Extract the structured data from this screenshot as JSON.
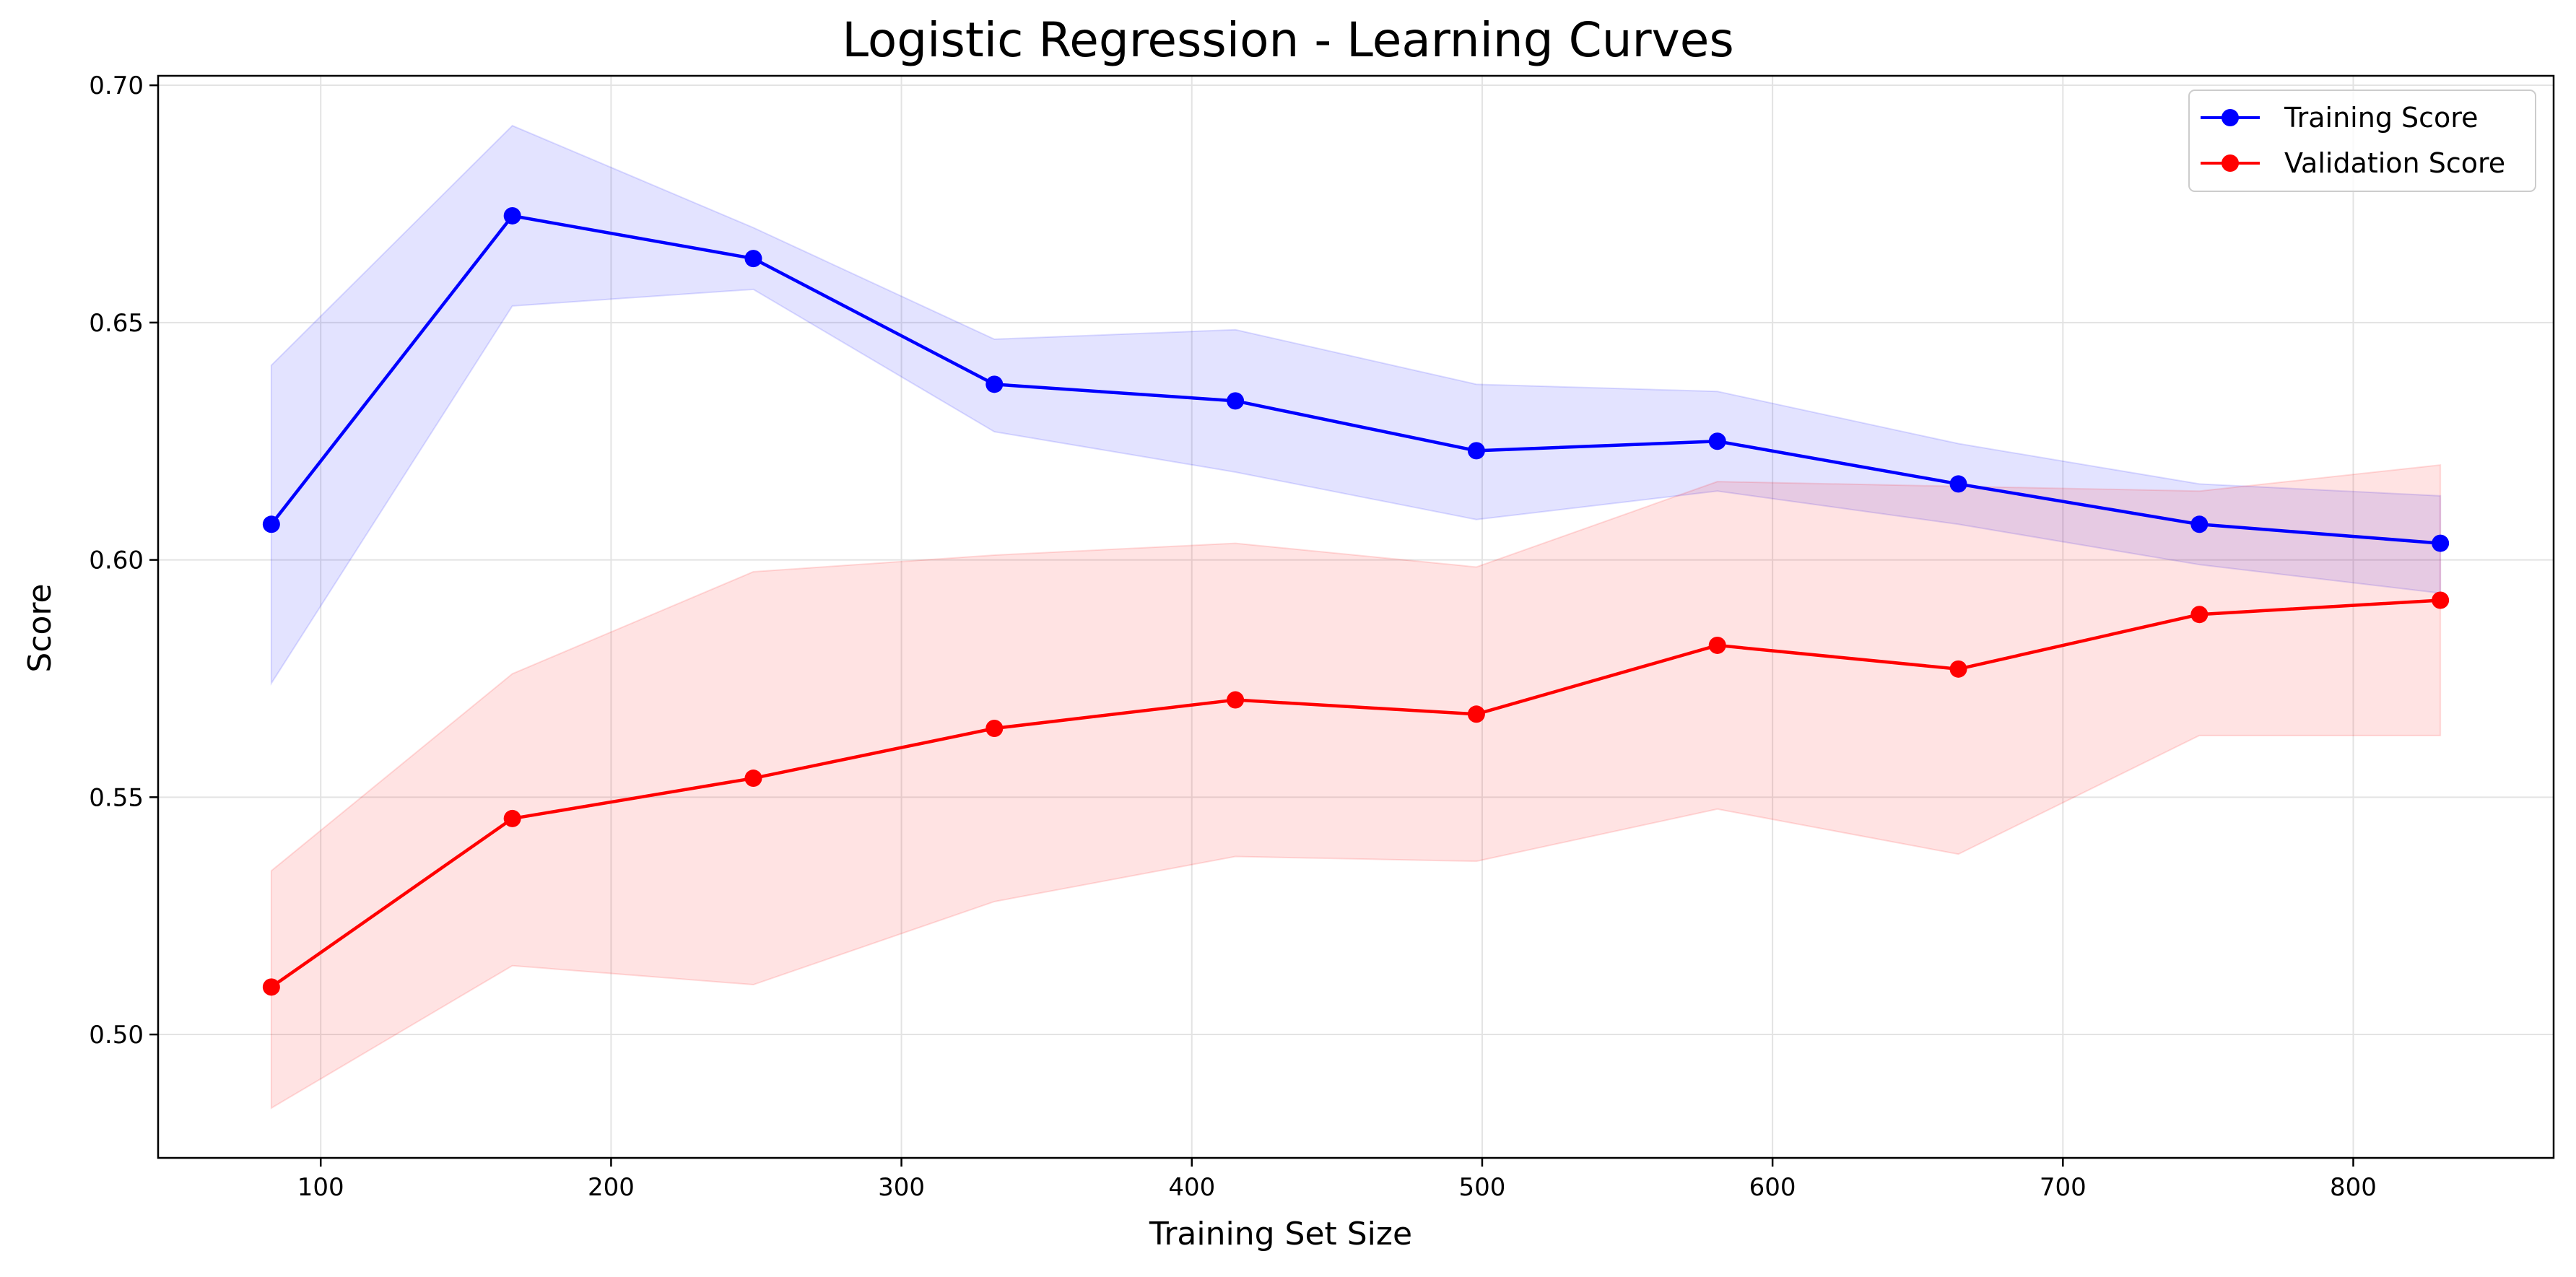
{
  "chart_data": {
    "type": "line",
    "title": "Logistic Regression - Learning Curves",
    "xlabel": "Training Set Size",
    "ylabel": "Score",
    "xlim": [
      44,
      869
    ],
    "ylim": [
      0.474,
      0.702
    ],
    "x_ticks": [
      100,
      200,
      300,
      400,
      500,
      600,
      700,
      800
    ],
    "y_ticks": [
      0.5,
      0.55,
      0.6,
      0.65,
      0.7
    ],
    "x_tick_labels": [
      "100",
      "200",
      "300",
      "400",
      "500",
      "600",
      "700",
      "800"
    ],
    "y_tick_labels": [
      "0.50",
      "0.55",
      "0.60",
      "0.65",
      "0.70"
    ],
    "grid": true,
    "legend_position": "top-right",
    "x": [
      83,
      166,
      249,
      332,
      415,
      498,
      581,
      664,
      747,
      830
    ],
    "series": [
      {
        "name": "Training Score",
        "color": "#0000ff",
        "band_color": "#e5e5ff",
        "values": [
          0.6075,
          0.6725,
          0.6635,
          0.637,
          0.6335,
          0.623,
          0.625,
          0.616,
          0.6075,
          0.6035
        ],
        "upper": [
          0.641,
          0.6915,
          0.67,
          0.6465,
          0.6485,
          0.637,
          0.6355,
          0.6245,
          0.616,
          0.6135
        ],
        "lower": [
          0.574,
          0.6535,
          0.657,
          0.627,
          0.6185,
          0.6085,
          0.6145,
          0.6075,
          0.599,
          0.593
        ]
      },
      {
        "name": "Validation Score",
        "color": "#ff0000",
        "band_color": "#ffe0e0",
        "values": [
          0.51,
          0.5455,
          0.554,
          0.5645,
          0.5705,
          0.5675,
          0.582,
          0.577,
          0.5885,
          0.5915
        ],
        "upper": [
          0.5345,
          0.576,
          0.5975,
          0.601,
          0.6035,
          0.5985,
          0.6165,
          0.6155,
          0.6145,
          0.62
        ],
        "lower": [
          0.4845,
          0.5145,
          0.5105,
          0.528,
          0.5375,
          0.5365,
          0.5475,
          0.538,
          0.563,
          0.563
        ]
      }
    ]
  }
}
